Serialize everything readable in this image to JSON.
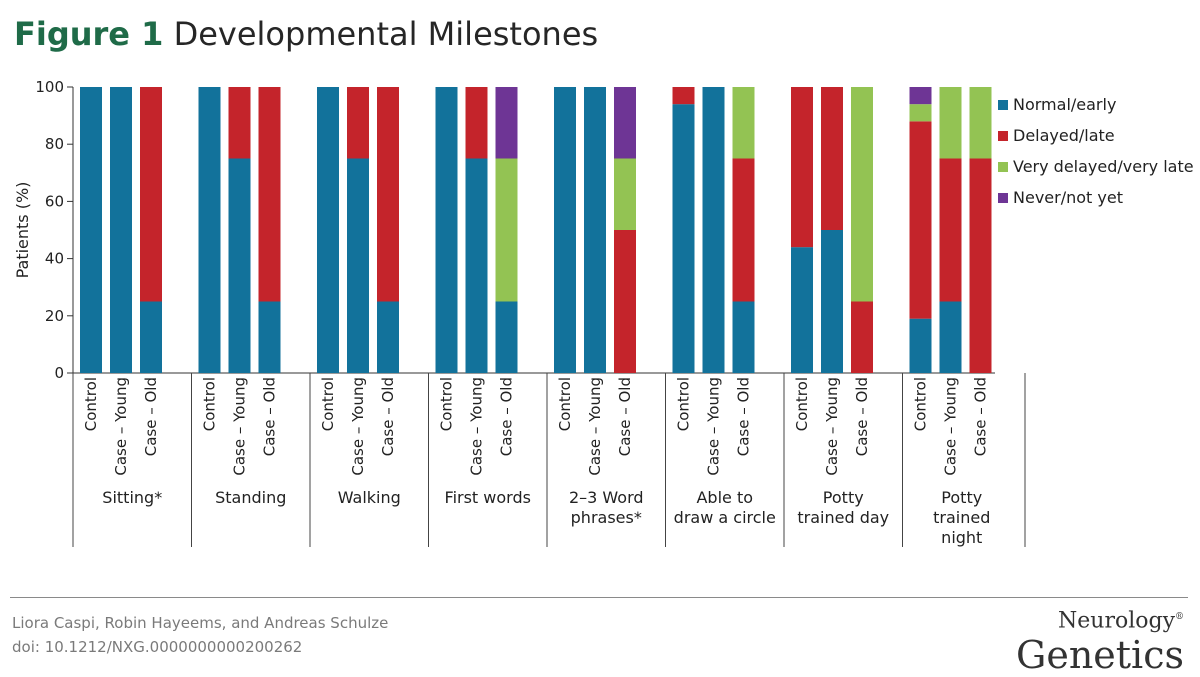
{
  "figure": {
    "number_label": "Figure 1",
    "title": "Developmental Milestones"
  },
  "footer": {
    "authors": "Liora Caspi, Robin Hayeems, and Andreas Schulze",
    "doi": "doi: 10.1212/NXG.0000000000200262",
    "journal_top": "Neurology",
    "journal_mark": "®",
    "journal_bottom": "Genetics"
  },
  "chart_data": {
    "type": "bar",
    "stacked": true,
    "ylabel": "Patients (%)",
    "ylim": [
      0,
      100
    ],
    "yticks": [
      0,
      20,
      40,
      60,
      80,
      100
    ],
    "grid": false,
    "legend_position": "right",
    "series": [
      {
        "name": "Normal/early",
        "color": "#12729b"
      },
      {
        "name": "Delayed/late",
        "color": "#c4242b"
      },
      {
        "name": "Very delayed/very late",
        "color": "#93c353"
      },
      {
        "name": "Never/not yet",
        "color": "#6e3595"
      }
    ],
    "groups": [
      {
        "label": [
          "Sitting*"
        ],
        "bars": [
          {
            "category": "Control",
            "values": [
              100,
              0,
              0,
              0
            ]
          },
          {
            "category": "Case – Young",
            "values": [
              100,
              0,
              0,
              0
            ]
          },
          {
            "category": "Case – Old",
            "values": [
              25,
              75,
              0,
              0
            ]
          }
        ]
      },
      {
        "label": [
          "Standing"
        ],
        "bars": [
          {
            "category": "Control",
            "values": [
              100,
              0,
              0,
              0
            ]
          },
          {
            "category": "Case – Young",
            "values": [
              75,
              25,
              0,
              0
            ]
          },
          {
            "category": "Case – Old",
            "values": [
              25,
              75,
              0,
              0
            ]
          }
        ]
      },
      {
        "label": [
          "Walking"
        ],
        "bars": [
          {
            "category": "Control",
            "values": [
              100,
              0,
              0,
              0
            ]
          },
          {
            "category": "Case – Young",
            "values": [
              75,
              25,
              0,
              0
            ]
          },
          {
            "category": "Case – Old",
            "values": [
              25,
              75,
              0,
              0
            ]
          }
        ]
      },
      {
        "label": [
          "First words"
        ],
        "bars": [
          {
            "category": "Control",
            "values": [
              100,
              0,
              0,
              0
            ]
          },
          {
            "category": "Case – Young",
            "values": [
              75,
              25,
              0,
              0
            ]
          },
          {
            "category": "Case – Old",
            "values": [
              25,
              0,
              50,
              25
            ]
          }
        ]
      },
      {
        "label": [
          "2–3 Word",
          "phrases*"
        ],
        "bars": [
          {
            "category": "Control",
            "values": [
              100,
              0,
              0,
              0
            ]
          },
          {
            "category": "Case – Young",
            "values": [
              100,
              0,
              0,
              0
            ]
          },
          {
            "category": "Case – Old",
            "values": [
              0,
              50,
              25,
              25
            ]
          }
        ]
      },
      {
        "label": [
          "Able to",
          "draw a circle"
        ],
        "bars": [
          {
            "category": "Control",
            "values": [
              94,
              6,
              0,
              0
            ]
          },
          {
            "category": "Case – Young",
            "values": [
              100,
              0,
              0,
              0
            ]
          },
          {
            "category": "Case – Old",
            "values": [
              25,
              50,
              25,
              0
            ]
          }
        ]
      },
      {
        "label": [
          "Potty",
          "trained day"
        ],
        "bars": [
          {
            "category": "Control",
            "values": [
              44,
              56,
              0,
              0
            ]
          },
          {
            "category": "Case – Young",
            "values": [
              50,
              50,
              0,
              0
            ]
          },
          {
            "category": "Case – Old",
            "values": [
              0,
              25,
              75,
              0
            ]
          }
        ]
      },
      {
        "label": [
          "Potty",
          "trained",
          "night"
        ],
        "bars": [
          {
            "category": "Control",
            "values": [
              19,
              69,
              6,
              6
            ]
          },
          {
            "category": "Case – Young",
            "values": [
              25,
              50,
              25,
              0
            ]
          },
          {
            "category": "Case – Old",
            "values": [
              0,
              75,
              25,
              0
            ]
          }
        ]
      }
    ]
  }
}
